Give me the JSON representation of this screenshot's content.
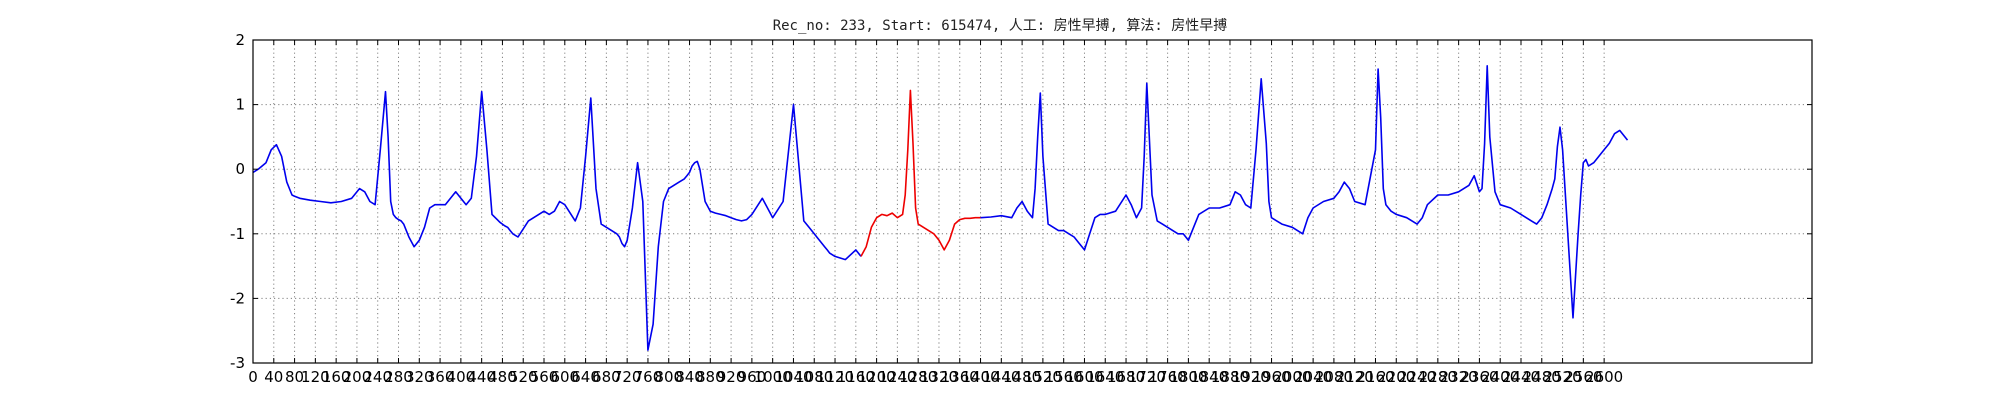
{
  "chart_data": {
    "type": "line",
    "title": "Rec_no: 233, Start: 615474, 人工: 房性早搏, 算法: 房性早搏",
    "xlabel": "",
    "ylabel": "",
    "xlim": [
      0,
      3000
    ],
    "ylim": [
      -3,
      2
    ],
    "grid": true,
    "xticks": [
      0,
      40,
      80,
      120,
      160,
      200,
      240,
      280,
      320,
      360,
      400,
      440,
      480,
      520,
      560,
      600,
      640,
      680,
      720,
      760,
      800,
      840,
      880,
      920,
      960,
      1000,
      1040,
      1080,
      1120,
      1160,
      1200,
      1240,
      1280,
      1320,
      1360,
      1400,
      1440,
      1480,
      1520,
      1560,
      1600,
      1640,
      1680,
      1720,
      1760,
      1800,
      1840,
      1880,
      1920,
      1960,
      2000,
      2040,
      2080,
      2120,
      2160,
      2200,
      2240,
      2280,
      2320,
      2360,
      2400,
      2440,
      2480,
      2520,
      2560,
      2600
    ],
    "yticks": [
      -3,
      -2,
      -1,
      0,
      1,
      2
    ],
    "series": [
      {
        "color": "#0000ee",
        "x": [
          0,
          10,
          25,
          35,
          45,
          55,
          65,
          75,
          80,
          90,
          110,
          130,
          150,
          170,
          190,
          205,
          215,
          225,
          235,
          245,
          255,
          260,
          265,
          270,
          275,
          280,
          285,
          290,
          295,
          300,
          310,
          320,
          330,
          340,
          350,
          360,
          370,
          380,
          390,
          400,
          410,
          420,
          430,
          440,
          450,
          460,
          470,
          475,
          480,
          485,
          490,
          495,
          500,
          510,
          530,
          550,
          560,
          570,
          580,
          590,
          600,
          620,
          630,
          640,
          650,
          660,
          670,
          680,
          690,
          700,
          705,
          710,
          715,
          720,
          730,
          740,
          750,
          760,
          770,
          780,
          790,
          800,
          810,
          820,
          830,
          835,
          840,
          845,
          850,
          855,
          860,
          870,
          880,
          890,
          900,
          910,
          920,
          930,
          940,
          950,
          960,
          980,
          1000,
          1020,
          1040,
          1060,
          1070,
          1080,
          1085,
          1090,
          1095,
          1100,
          1105,
          1110,
          1120,
          1140,
          1160,
          1170
        ],
        "y": [
          -0.05,
          0,
          0.1,
          0.3,
          0.38,
          0.2,
          -0.2,
          -0.4,
          -0.42,
          -0.45,
          -0.48,
          -0.5,
          -0.52,
          -0.5,
          -0.45,
          -0.3,
          -0.35,
          -0.5,
          -0.55,
          0.3,
          1.2,
          0.5,
          -0.5,
          -0.7,
          -0.75,
          -0.78,
          -0.8,
          -0.85,
          -0.95,
          -1.05,
          -1.2,
          -1.1,
          -0.9,
          -0.6,
          -0.55,
          -0.55,
          -0.55,
          -0.45,
          -0.35,
          -0.45,
          -0.55,
          -0.45,
          0.2,
          1.2,
          0.3,
          -0.7,
          -0.78,
          -0.82,
          -0.85,
          -0.88,
          -0.9,
          -0.95,
          -1.0,
          -1.05,
          -0.8,
          -0.7,
          -0.65,
          -0.7,
          -0.65,
          -0.5,
          -0.55,
          -0.8,
          -0.6,
          0.2,
          1.1,
          -0.3,
          -0.85,
          -0.9,
          -0.95,
          -1.0,
          -1.05,
          -1.15,
          -1.2,
          -1.1,
          -0.6,
          0.1,
          -0.5,
          -2.8,
          -2.4,
          -1.2,
          -0.5,
          -0.3,
          -0.25,
          -0.2,
          -0.15,
          -0.1,
          -0.05,
          0.05,
          0.1,
          0.12,
          0,
          -0.5,
          -0.65,
          -0.68,
          -0.7,
          -0.72,
          -0.75,
          -0.78,
          -0.8,
          -0.78,
          -0.7,
          -0.45,
          -0.75,
          -0.5,
          1.0,
          -0.8,
          -0.9,
          -1.0,
          -1.05,
          -1.1,
          -1.15,
          -1.2,
          -1.25,
          -1.3,
          -1.35,
          -1.4,
          -1.25,
          -1.35
        ]
      },
      {
        "color": "#ee0000",
        "x": [
          1170,
          1180,
          1190,
          1200,
          1210,
          1220,
          1230,
          1240,
          1250,
          1255,
          1260,
          1265,
          1270,
          1275,
          1280,
          1290,
          1300,
          1310,
          1320,
          1330,
          1340,
          1350,
          1360,
          1370,
          1380,
          1390,
          1400
        ],
        "y": [
          -1.35,
          -1.2,
          -0.9,
          -0.75,
          -0.7,
          -0.72,
          -0.68,
          -0.75,
          -0.7,
          -0.4,
          0.3,
          1.22,
          0.4,
          -0.6,
          -0.85,
          -0.9,
          -0.95,
          -1.0,
          -1.1,
          -1.25,
          -1.1,
          -0.85,
          -0.78,
          -0.76,
          -0.76,
          -0.75,
          -0.75
        ]
      },
      {
        "color": "#0000ee",
        "x": [
          1400,
          1420,
          1440,
          1460,
          1470,
          1480,
          1490,
          1500,
          1505,
          1510,
          1515,
          1520,
          1530,
          1540,
          1550,
          1560,
          1570,
          1580,
          1590,
          1600,
          1610,
          1620,
          1630,
          1640,
          1660,
          1680,
          1690,
          1700,
          1710,
          1715,
          1720,
          1730,
          1740,
          1750,
          1760,
          1770,
          1780,
          1790,
          1800,
          1810,
          1820,
          1840,
          1860,
          1880,
          1890,
          1900,
          1910,
          1920,
          1930,
          1940,
          1950,
          1955,
          1960,
          1970,
          1980,
          2000,
          2010,
          2020,
          2030,
          2040,
          2060,
          2080,
          2090,
          2100,
          2110,
          2120,
          2140,
          2160,
          2165,
          2170,
          2175,
          2180,
          2190,
          2200,
          2220,
          2240,
          2250,
          2260,
          2280,
          2300,
          2320,
          2340,
          2350,
          2360,
          2365,
          2370,
          2375,
          2380,
          2390,
          2400,
          2420,
          2440,
          2460,
          2470,
          2480,
          2490,
          2500,
          2505,
          2510,
          2515,
          2520,
          2530,
          2540,
          2550,
          2555,
          2560,
          2565,
          2570,
          2580,
          2590,
          2600,
          2610,
          2620,
          2630,
          2640,
          2645
        ],
        "y": [
          -0.75,
          -0.74,
          -0.72,
          -0.75,
          -0.6,
          -0.5,
          -0.65,
          -0.75,
          -0.3,
          0.5,
          1.18,
          0.2,
          -0.85,
          -0.9,
          -0.95,
          -0.95,
          -1.0,
          -1.05,
          -1.15,
          -1.25,
          -1.0,
          -0.75,
          -0.7,
          -0.7,
          -0.65,
          -0.4,
          -0.55,
          -0.75,
          -0.6,
          0.2,
          1.33,
          -0.4,
          -0.8,
          -0.85,
          -0.9,
          -0.95,
          -1.0,
          -1.0,
          -1.1,
          -0.9,
          -0.7,
          -0.6,
          -0.6,
          -0.55,
          -0.35,
          -0.4,
          -0.55,
          -0.6,
          0.3,
          1.4,
          0.4,
          -0.5,
          -0.75,
          -0.8,
          -0.85,
          -0.9,
          -0.95,
          -1.0,
          -0.75,
          -0.6,
          -0.5,
          -0.45,
          -0.35,
          -0.2,
          -0.3,
          -0.5,
          -0.55,
          0.3,
          1.55,
          0.8,
          -0.3,
          -0.55,
          -0.65,
          -0.7,
          -0.75,
          -0.85,
          -0.75,
          -0.55,
          -0.4,
          -0.4,
          -0.35,
          -0.25,
          -0.1,
          -0.35,
          -0.3,
          0.4,
          1.6,
          0.5,
          -0.35,
          -0.55,
          -0.6,
          -0.7,
          -0.8,
          -0.85,
          -0.75,
          -0.55,
          -0.3,
          -0.15,
          0.35,
          0.65,
          0.3,
          -1.0,
          -2.3,
          -1.0,
          -0.4,
          0.1,
          0.15,
          0.05,
          0.1,
          0.2,
          0.3,
          0.4,
          0.55,
          0.6,
          0.5,
          0.45
        ]
      }
    ]
  }
}
